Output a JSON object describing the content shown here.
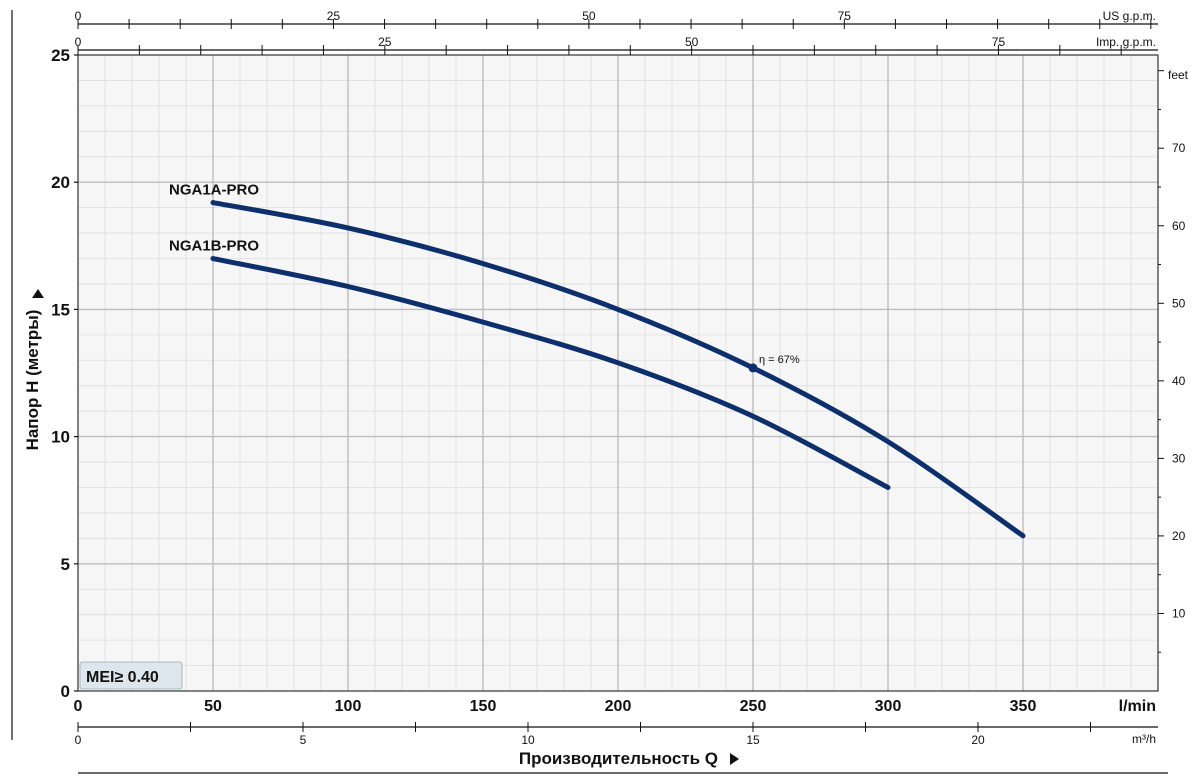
{
  "chart_data": {
    "type": "line",
    "title": "",
    "xlabel": "Производительность Q",
    "ylabel": "Напор H (метры)",
    "x_unit": "l/min",
    "xlim": [
      0,
      400
    ],
    "ylim": [
      0,
      25
    ],
    "x_ticks": [
      "0",
      "50",
      "100",
      "150",
      "200",
      "250",
      "300",
      "350"
    ],
    "y_ticks": [
      "0",
      "5",
      "10",
      "15",
      "20",
      "25"
    ],
    "grid": true,
    "secondary_axes": {
      "us_gpm": {
        "unit": "US g.p.m.",
        "ticks": [
          "0",
          "25",
          "50",
          "75"
        ],
        "max": 105.7
      },
      "imp_gpm": {
        "unit": "Imp. g.p.m.",
        "ticks": [
          "0",
          "25",
          "50",
          "75"
        ],
        "max": 88
      },
      "m3h": {
        "unit": "m³/h",
        "ticks": [
          "0",
          "5",
          "10",
          "15",
          "20"
        ],
        "max": 24
      },
      "feet": {
        "unit": "feet",
        "ticks": [
          "10",
          "20",
          "30",
          "40",
          "50",
          "60",
          "70"
        ]
      }
    },
    "series": [
      {
        "name": "NGA1A-PRO",
        "x": [
          50,
          100,
          150,
          200,
          250,
          300,
          350
        ],
        "y": [
          19.2,
          18.2,
          16.8,
          15.0,
          12.7,
          9.8,
          6.1
        ]
      },
      {
        "name": "NGA1B-PRO",
        "x": [
          50,
          100,
          150,
          200,
          250,
          300
        ],
        "y": [
          17.0,
          15.9,
          14.5,
          12.9,
          10.8,
          8.0
        ]
      }
    ],
    "annotations": [
      {
        "text": "η = 67%",
        "x": 250,
        "y": 12.7,
        "series": "NGA1A-PRO"
      }
    ],
    "badge": "MEI≥ 0.40",
    "colors": {
      "curve": "#0d2f6b",
      "grid_major": "#bdbdbd",
      "grid_minor": "#dcdcdc",
      "plot_bg": "#f6f6f6",
      "badge_bg": "#dde6ec"
    }
  }
}
